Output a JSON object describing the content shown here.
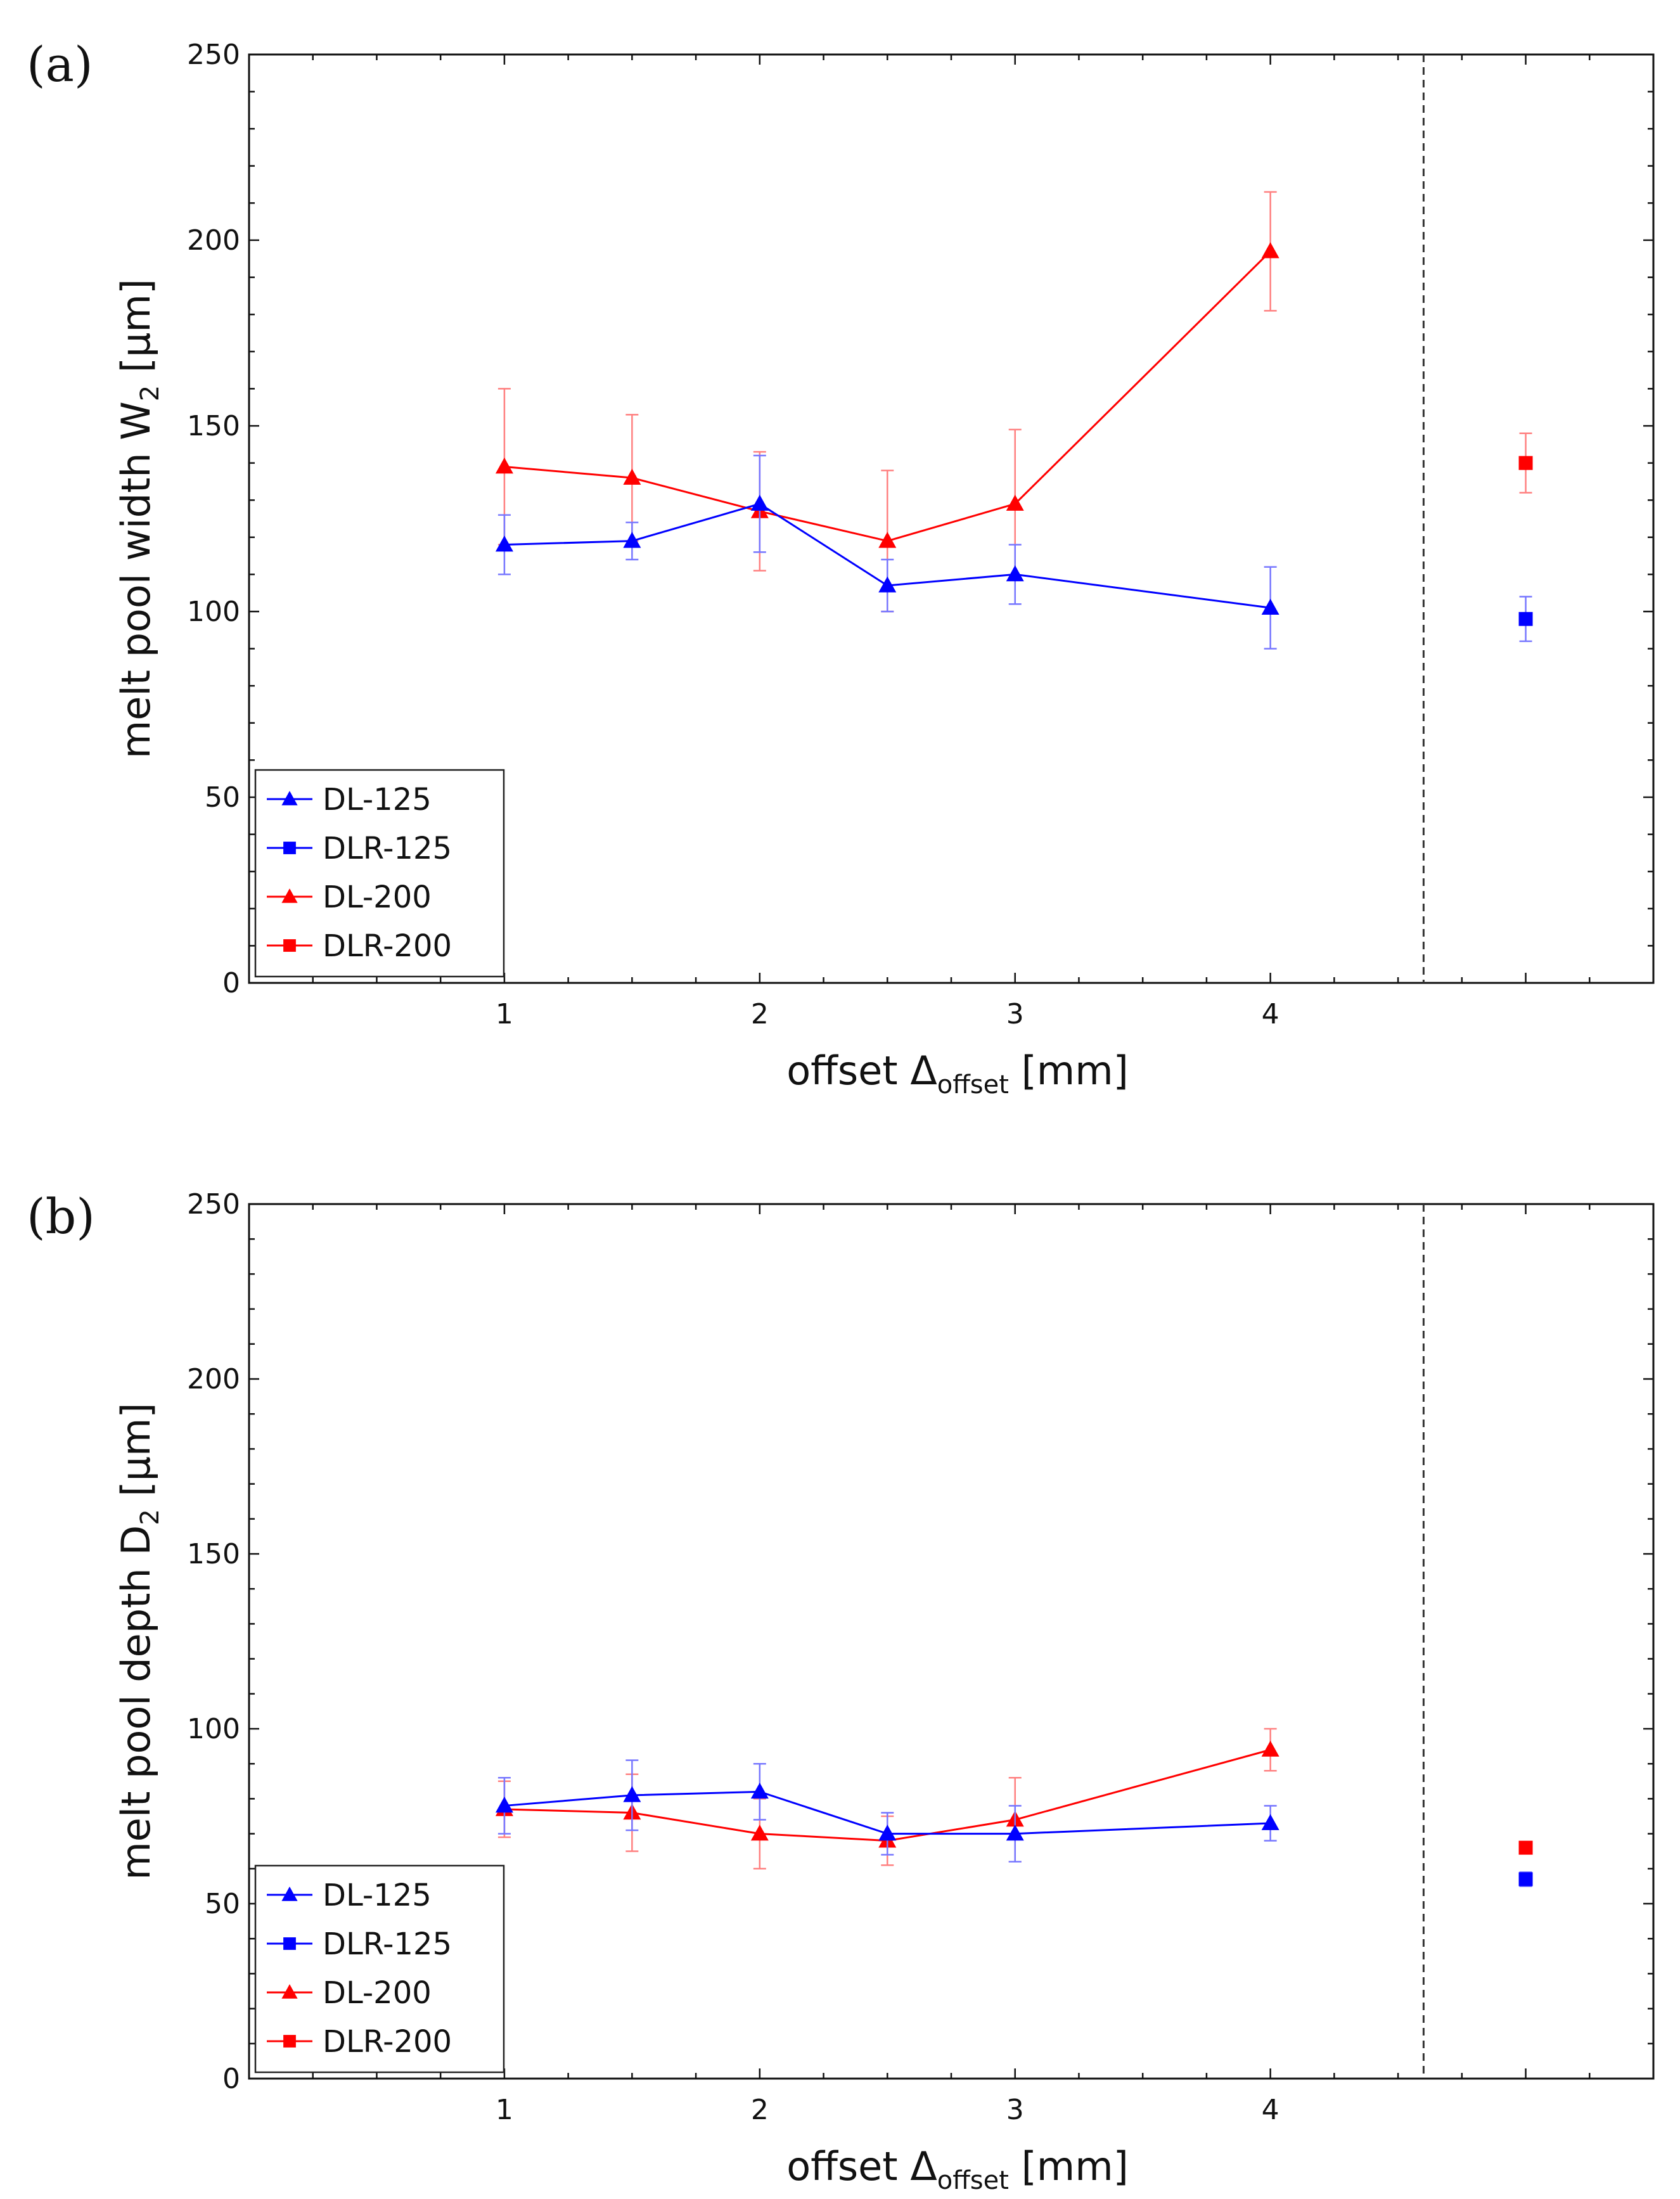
{
  "colors": {
    "blue": "#0000ff",
    "red": "#ff0000",
    "blue_error": "#7777ff",
    "red_error": "#ff8080",
    "axis": "#111111",
    "divider": "#333333"
  },
  "chart_data": [
    {
      "type": "scatter",
      "panel_label": "(a)",
      "ylabel": "melt pool width W",
      "ylabel_sub": "2",
      "ylabel_unit": " [µm]",
      "xlabel": "offset Δ",
      "xlabel_sub": "offset",
      "xlabel_unit": " [mm]",
      "ylim": [
        0,
        250
      ],
      "xlim": [
        0,
        5.5
      ],
      "y_ticks": [
        "0",
        "50",
        "100",
        "150",
        "200",
        "250"
      ],
      "x_ticks": [
        "1",
        "2",
        "3",
        "4"
      ],
      "divider_x": 4.6,
      "grid": false,
      "legend_position": "bottom-left",
      "series": [
        {
          "name": "DL-125",
          "color": "#0000ff",
          "marker": "triangle",
          "connected": true,
          "points": [
            {
              "x": 1,
              "y": 118,
              "err": 8
            },
            {
              "x": 1.5,
              "y": 119,
              "err": 5
            },
            {
              "x": 2,
              "y": 129,
              "err": 13
            },
            {
              "x": 2.5,
              "y": 107,
              "err": 7
            },
            {
              "x": 3,
              "y": 110,
              "err": 8
            },
            {
              "x": 4,
              "y": 101,
              "err": 11
            }
          ]
        },
        {
          "name": "DLR-125",
          "color": "#0000ff",
          "marker": "square",
          "connected": false,
          "points": [
            {
              "x": 5,
              "y": 98,
              "err": 6
            }
          ]
        },
        {
          "name": "DL-200",
          "color": "#ff0000",
          "marker": "triangle",
          "connected": true,
          "points": [
            {
              "x": 1,
              "y": 139,
              "err": 21
            },
            {
              "x": 1.5,
              "y": 136,
              "err": 17
            },
            {
              "x": 2,
              "y": 127,
              "err": 16
            },
            {
              "x": 2.5,
              "y": 119,
              "err": 19
            },
            {
              "x": 3,
              "y": 129,
              "err": 20
            },
            {
              "x": 4,
              "y": 197,
              "err": 16
            }
          ]
        },
        {
          "name": "DLR-200",
          "color": "#ff0000",
          "marker": "square",
          "connected": false,
          "points": [
            {
              "x": 5,
              "y": 140,
              "err": 8
            }
          ]
        }
      ]
    },
    {
      "type": "scatter",
      "panel_label": "(b)",
      "ylabel": "melt pool depth D",
      "ylabel_sub": "2",
      "ylabel_unit": " [µm]",
      "xlabel": "offset Δ",
      "xlabel_sub": "offset",
      "xlabel_unit": " [mm]",
      "ylim": [
        0,
        250
      ],
      "xlim": [
        0,
        5.5
      ],
      "y_ticks": [
        "0",
        "50",
        "100",
        "150",
        "200",
        "250"
      ],
      "x_ticks": [
        "1",
        "2",
        "3",
        "4"
      ],
      "divider_x": 4.6,
      "grid": false,
      "legend_position": "bottom-left",
      "series": [
        {
          "name": "DL-125",
          "color": "#0000ff",
          "marker": "triangle",
          "connected": true,
          "points": [
            {
              "x": 1,
              "y": 78,
              "err": 8
            },
            {
              "x": 1.5,
              "y": 81,
              "err": 10
            },
            {
              "x": 2,
              "y": 82,
              "err": 8
            },
            {
              "x": 2.5,
              "y": 70,
              "err": 6
            },
            {
              "x": 3,
              "y": 70,
              "err": 8
            },
            {
              "x": 4,
              "y": 73,
              "err": 5
            }
          ]
        },
        {
          "name": "DLR-125",
          "color": "#0000ff",
          "marker": "square",
          "connected": false,
          "points": [
            {
              "x": 5,
              "y": 57,
              "err": 2
            }
          ]
        },
        {
          "name": "DL-200",
          "color": "#ff0000",
          "marker": "triangle",
          "connected": true,
          "points": [
            {
              "x": 1,
              "y": 77,
              "err": 8
            },
            {
              "x": 1.5,
              "y": 76,
              "err": 11
            },
            {
              "x": 2,
              "y": 70,
              "err": 10
            },
            {
              "x": 2.5,
              "y": 68,
              "err": 7
            },
            {
              "x": 3,
              "y": 74,
              "err": 12
            },
            {
              "x": 4,
              "y": 94,
              "err": 6
            }
          ]
        },
        {
          "name": "DLR-200",
          "color": "#ff0000",
          "marker": "square",
          "connected": false,
          "points": [
            {
              "x": 5,
              "y": 66,
              "err": 1
            }
          ]
        }
      ]
    }
  ]
}
